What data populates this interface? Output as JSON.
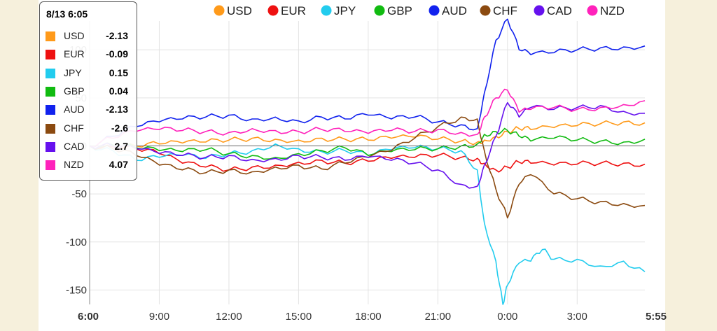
{
  "chart_data": {
    "type": "line",
    "title": "",
    "xlabel": "",
    "ylabel": "",
    "x_ticks": [
      "6:00",
      "9:00",
      "12:00",
      "15:00",
      "18:00",
      "21:00",
      "0:00",
      "3:00",
      "5:55"
    ],
    "x_tick_hours": [
      0,
      3,
      6,
      9,
      12,
      15,
      18,
      21,
      23.917
    ],
    "x_range_hours": [
      0,
      23.917
    ],
    "y_ticks": [
      -150,
      -100,
      -50,
      0,
      50,
      100
    ],
    "ylim": [
      -165,
      130
    ],
    "grid": true,
    "zero_line": true,
    "legend": {
      "position": "top",
      "entries": [
        "USD",
        "EUR",
        "JPY",
        "GBP",
        "AUD",
        "CHF",
        "CAD",
        "NZD"
      ]
    },
    "series": [
      {
        "name": "USD",
        "color": "#ff9a1a",
        "x": [
          0,
          1,
          2,
          3,
          4,
          5,
          6,
          7,
          8,
          9,
          10,
          11,
          12,
          13,
          14,
          15,
          16,
          16.7,
          17,
          17.5,
          18,
          18.5,
          19,
          20,
          21,
          22,
          23,
          23.917
        ],
        "y": [
          0,
          -1,
          0,
          2,
          3,
          4,
          6,
          8,
          7,
          6,
          8,
          7,
          6,
          8,
          9,
          7,
          5,
          4,
          6,
          10,
          15,
          18,
          17,
          19,
          21,
          23,
          25,
          24
        ]
      },
      {
        "name": "EUR",
        "color": "#ee1111",
        "x": [
          0,
          1,
          2,
          3,
          4,
          5,
          6,
          7,
          8,
          9,
          10,
          11,
          12,
          13,
          14,
          15,
          16,
          16.7,
          17,
          17.5,
          18,
          18.5,
          19,
          20,
          21,
          22,
          23,
          23.917
        ],
        "y": [
          0,
          -1,
          -3,
          -8,
          -18,
          -22,
          -25,
          -22,
          -20,
          -17,
          -15,
          -18,
          -16,
          -13,
          -12,
          -10,
          -12,
          -13,
          -18,
          -25,
          -22,
          -17,
          -18,
          -20,
          -19,
          -18,
          -18,
          -19
        ]
      },
      {
        "name": "JPY",
        "color": "#22ccee",
        "x": [
          0,
          1,
          2,
          3,
          4,
          5,
          6,
          7,
          8,
          9,
          10,
          11,
          12,
          13,
          14,
          15,
          16,
          16.7,
          17,
          17.5,
          17.8,
          18,
          18.5,
          19,
          19.5,
          20,
          21,
          22,
          23,
          23.917
        ],
        "y": [
          0,
          -5,
          -15,
          -12,
          -10,
          -13,
          -8,
          -5,
          2,
          -3,
          -6,
          -5,
          -10,
          -4,
          -2,
          -3,
          -5,
          -25,
          -80,
          -120,
          -165,
          -145,
          -122,
          -120,
          -108,
          -118,
          -118,
          -125,
          -120,
          -131
        ]
      },
      {
        "name": "GBP",
        "color": "#11bb11",
        "x": [
          0,
          1,
          2,
          3,
          4,
          5,
          6,
          7,
          8,
          9,
          10,
          11,
          12,
          13,
          14,
          15,
          16,
          16.7,
          17,
          17.5,
          18,
          18.5,
          19,
          20,
          21,
          22,
          23,
          23.917
        ],
        "y": [
          0,
          1,
          -2,
          -5,
          -6,
          -4,
          -8,
          -10,
          -12,
          -8,
          -5,
          -2,
          -10,
          -6,
          -4,
          -3,
          0,
          2,
          12,
          15,
          16,
          10,
          5,
          8,
          6,
          5,
          4,
          7
        ]
      },
      {
        "name": "AUD",
        "color": "#1122ee",
        "x": [
          0,
          1,
          2,
          3,
          4,
          5,
          6,
          7,
          8,
          9,
          10,
          11,
          12,
          13,
          14,
          15,
          16,
          16.7,
          17,
          17.5,
          18,
          18.5,
          19,
          20,
          21,
          22,
          23,
          23.917
        ],
        "y": [
          0,
          10,
          20,
          25,
          28,
          30,
          32,
          28,
          30,
          26,
          30,
          28,
          32,
          28,
          30,
          25,
          22,
          18,
          55,
          110,
          132,
          100,
          95,
          97,
          100,
          102,
          103,
          104
        ]
      },
      {
        "name": "CHF",
        "color": "#8b4a10",
        "x": [
          0,
          1,
          2,
          3,
          4,
          5,
          6,
          7,
          8,
          9,
          10,
          11,
          12,
          13,
          14,
          15,
          16,
          16.7,
          17,
          17.5,
          18,
          18.5,
          19,
          20,
          21,
          22,
          23,
          23.917
        ],
        "y": [
          0,
          -3,
          -10,
          -20,
          -25,
          -28,
          -25,
          -27,
          -22,
          -20,
          -24,
          -18,
          -12,
          -5,
          8,
          20,
          30,
          28,
          -5,
          -45,
          -75,
          -40,
          -30,
          -50,
          -55,
          -58,
          -60,
          -62
        ]
      },
      {
        "name": "CAD",
        "color": "#6611ee",
        "x": [
          0,
          1,
          2,
          3,
          4,
          5,
          6,
          7,
          8,
          9,
          10,
          11,
          12,
          13,
          14,
          15,
          16,
          16.7,
          17,
          17.5,
          18,
          18.5,
          19,
          20,
          21,
          22,
          23,
          23.917
        ],
        "y": [
          0,
          0,
          -3,
          -8,
          -10,
          -12,
          -10,
          -14,
          -13,
          -10,
          -12,
          -15,
          -12,
          -15,
          -18,
          -25,
          -40,
          -42,
          -20,
          10,
          45,
          30,
          40,
          38,
          40,
          42,
          36,
          34
        ]
      },
      {
        "name": "NZD",
        "color": "#ff22bb",
        "x": [
          0,
          1,
          2,
          3,
          4,
          5,
          6,
          7,
          8,
          9,
          10,
          11,
          12,
          13,
          14,
          15,
          16,
          16.7,
          17,
          17.5,
          18,
          18.5,
          19,
          20,
          21,
          22,
          23,
          23.917
        ],
        "y": [
          0,
          8,
          15,
          17,
          16,
          15,
          14,
          18,
          16,
          15,
          17,
          15,
          13,
          16,
          15,
          17,
          14,
          12,
          30,
          50,
          58,
          35,
          38,
          40,
          38,
          40,
          43,
          47
        ]
      }
    ]
  },
  "tooltip": {
    "time": "8/13 6:05",
    "rows": [
      {
        "name": "USD",
        "value": "-2.13",
        "color": "#ff9a1a"
      },
      {
        "name": "EUR",
        "value": "-0.09",
        "color": "#ee1111"
      },
      {
        "name": "JPY",
        "value": "0.15",
        "color": "#22ccee"
      },
      {
        "name": "GBP",
        "value": "0.04",
        "color": "#11bb11"
      },
      {
        "name": "AUD",
        "value": "-2.13",
        "color": "#1122ee"
      },
      {
        "name": "CHF",
        "value": "-2.6",
        "color": "#8b4a10"
      },
      {
        "name": "CAD",
        "value": "2.7",
        "color": "#6611ee"
      },
      {
        "name": "NZD",
        "value": "4.07",
        "color": "#ff22bb"
      }
    ]
  }
}
